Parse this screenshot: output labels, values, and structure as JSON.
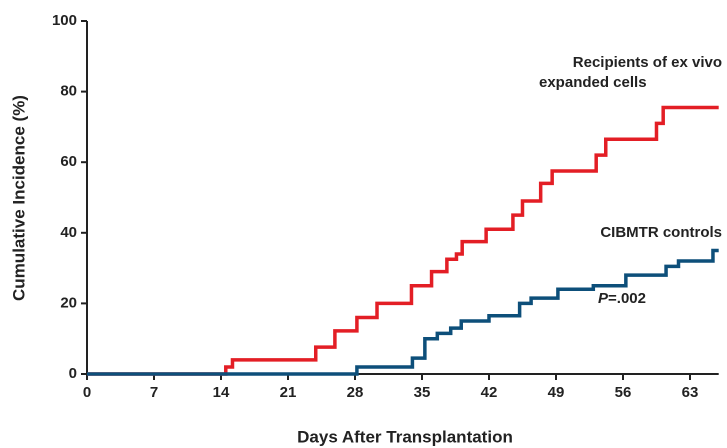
{
  "chart_data": {
    "type": "step",
    "x_label": "Days After Transplantation",
    "y_label": "Cumulative Incidence (%)",
    "xlim": [
      0,
      66
    ],
    "ylim": [
      0,
      100
    ],
    "xticks": [
      0,
      7,
      14,
      21,
      28,
      35,
      42,
      49,
      56,
      63
    ],
    "yticks": [
      0,
      20,
      40,
      60,
      80,
      100
    ],
    "series": [
      {
        "name": "Recipients of ex vivo expanded cells",
        "color": "#e31e25",
        "x": [
          0,
          14.5,
          15.2,
          23.9,
          25.9,
          28.2,
          30.3,
          33.9,
          36,
          37.6,
          38.6,
          39.2,
          41.7,
          44.5,
          45.5,
          47.4,
          48.6,
          53.2,
          54.2,
          59.5,
          60.2,
          66
        ],
        "values": [
          0,
          2,
          4,
          7.6,
          12.2,
          16,
          20,
          25,
          29,
          32.5,
          34,
          37.5,
          41,
          45,
          49,
          54,
          57.5,
          62,
          66.5,
          71,
          75.5,
          75.5
        ]
      },
      {
        "name": "CIBMTR controls",
        "color": "#0d4f7a",
        "x": [
          0,
          28.2,
          34,
          35.3,
          36.6,
          38,
          39.1,
          42,
          45.2,
          46.4,
          49.2,
          52.9,
          56.3,
          60.5,
          61.8,
          65.4,
          66
        ],
        "values": [
          0,
          2,
          4.5,
          10,
          11.5,
          13,
          15,
          16.5,
          20,
          21.5,
          24,
          25,
          28,
          30.5,
          32,
          35,
          35
        ]
      }
    ],
    "annotations": [
      "Recipients of ex vivo",
      "expanded cells",
      "CIBMTR controls"
    ],
    "p_value": [
      "P",
      "=.002"
    ]
  }
}
